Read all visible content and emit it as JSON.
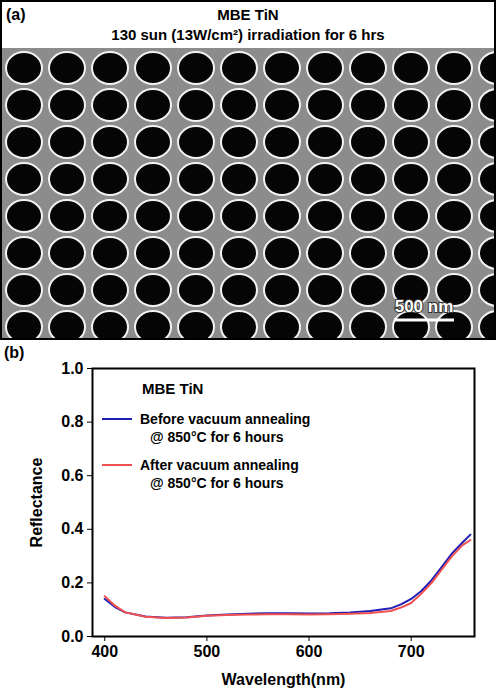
{
  "panel_a": {
    "label": "(a)",
    "title": "MBE TiN",
    "subtitle": "130 sun (13W/cm²) irradiation for 6 hrs",
    "scale_bar": "500 nm"
  },
  "chart_data": {
    "type": "line",
    "panel": "(b)",
    "title": "MBE TiN",
    "x_label": "Wavelength(nm)",
    "y_label": "Reflectance",
    "xlim": [
      388,
      762
    ],
    "xticks": [
      400,
      500,
      600,
      700
    ],
    "ylim": [
      0,
      1
    ],
    "yticks": [
      {
        "value": 0,
        "label": "0.0"
      },
      0.2,
      0.4,
      0.6,
      0.8,
      {
        "value": 1,
        "label": "1.0"
      }
    ],
    "legend": "upper left",
    "x": [
      400,
      410,
      420,
      440,
      460,
      480,
      500,
      520,
      540,
      560,
      580,
      600,
      620,
      640,
      660,
      680,
      690,
      700,
      710,
      720,
      730,
      740,
      750,
      758
    ],
    "series": [
      {
        "name": "Before vacuum annealing @ 850°C for 6 hours",
        "color": "#1f1fb4",
        "values": [
          0.14,
          0.11,
          0.09,
          0.075,
          0.07,
          0.072,
          0.078,
          0.082,
          0.085,
          0.087,
          0.087,
          0.086,
          0.087,
          0.09,
          0.095,
          0.105,
          0.12,
          0.14,
          0.17,
          0.21,
          0.26,
          0.31,
          0.35,
          0.38
        ]
      },
      {
        "name": "After vacuum annealing @ 850°C for 6 hours",
        "color": "#f05050",
        "values": [
          0.15,
          0.115,
          0.09,
          0.074,
          0.069,
          0.071,
          0.077,
          0.08,
          0.082,
          0.083,
          0.083,
          0.082,
          0.083,
          0.085,
          0.088,
          0.095,
          0.108,
          0.125,
          0.16,
          0.2,
          0.25,
          0.3,
          0.34,
          0.36
        ]
      }
    ]
  }
}
